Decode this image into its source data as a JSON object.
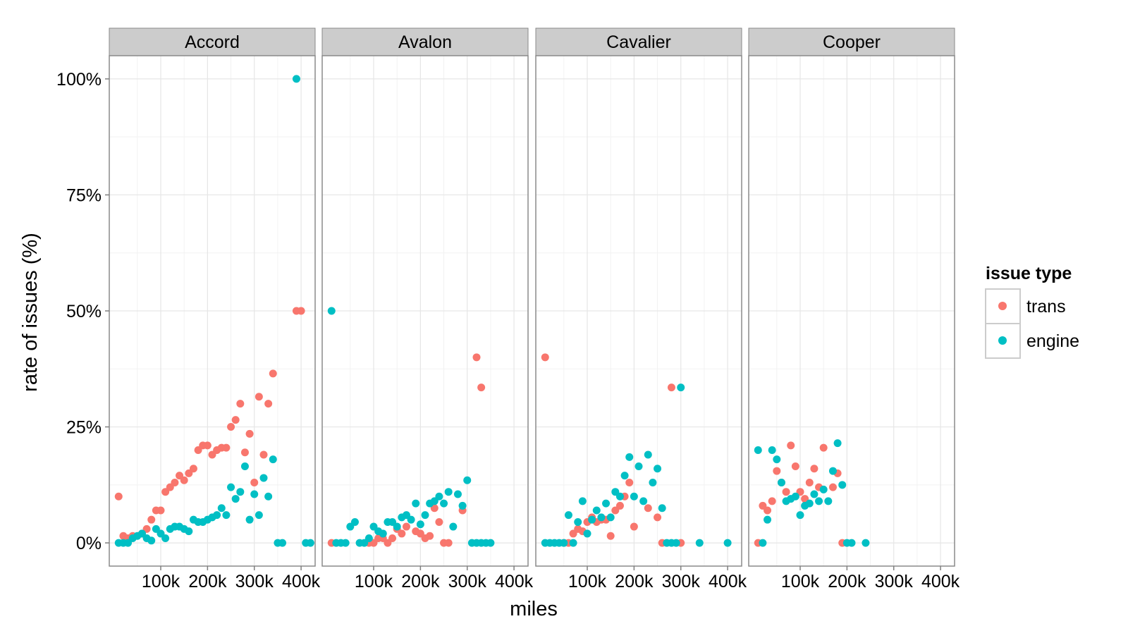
{
  "chart_data": {
    "type": "scatter",
    "xlabel": "miles",
    "ylabel": "rate of issues (%)",
    "x_ticks": [
      "100k",
      "200k",
      "300k",
      "400k"
    ],
    "x_tick_values": [
      100000,
      200000,
      300000,
      400000
    ],
    "y_ticks": [
      "0%",
      "25%",
      "50%",
      "75%",
      "100%"
    ],
    "y_tick_values": [
      0,
      25,
      50,
      75,
      100
    ],
    "xlim": [
      -10000,
      430000
    ],
    "ylim": [
      -5,
      105
    ],
    "grid": true,
    "legend": {
      "title": "issue type",
      "placement": "right",
      "entries": [
        {
          "label": "trans",
          "color": "#F8766D"
        },
        {
          "label": "engine",
          "color": "#00BFC4"
        }
      ]
    },
    "facets": [
      {
        "title": "Accord",
        "series": [
          {
            "name": "trans",
            "color": "#F8766D",
            "points": [
              [
                10000,
                10
              ],
              [
                20000,
                1.5
              ],
              [
                30000,
                1
              ],
              [
                40000,
                1.5
              ],
              [
                60000,
                2
              ],
              [
                70000,
                3
              ],
              [
                80000,
                5
              ],
              [
                90000,
                7
              ],
              [
                100000,
                7
              ],
              [
                110000,
                11
              ],
              [
                120000,
                12
              ],
              [
                130000,
                13
              ],
              [
                140000,
                14.5
              ],
              [
                150000,
                13.5
              ],
              [
                160000,
                15
              ],
              [
                170000,
                16
              ],
              [
                180000,
                20
              ],
              [
                190000,
                21
              ],
              [
                200000,
                21
              ],
              [
                210000,
                19
              ],
              [
                220000,
                20
              ],
              [
                230000,
                20.5
              ],
              [
                240000,
                20.5
              ],
              [
                250000,
                25
              ],
              [
                260000,
                26.5
              ],
              [
                270000,
                30
              ],
              [
                280000,
                19.5
              ],
              [
                290000,
                23.5
              ],
              [
                300000,
                13
              ],
              [
                310000,
                31.5
              ],
              [
                320000,
                19
              ],
              [
                330000,
                30
              ],
              [
                340000,
                36.5
              ],
              [
                390000,
                50
              ],
              [
                400000,
                50
              ]
            ]
          },
          {
            "name": "engine",
            "color": "#00BFC4",
            "points": [
              [
                10000,
                0
              ],
              [
                20000,
                0
              ],
              [
                30000,
                0
              ],
              [
                40000,
                1
              ],
              [
                50000,
                1.5
              ],
              [
                60000,
                2
              ],
              [
                70000,
                1
              ],
              [
                80000,
                0.5
              ],
              [
                90000,
                3
              ],
              [
                100000,
                2
              ],
              [
                110000,
                1
              ],
              [
                120000,
                3
              ],
              [
                130000,
                3.5
              ],
              [
                140000,
                3.5
              ],
              [
                150000,
                3
              ],
              [
                160000,
                2.5
              ],
              [
                170000,
                5
              ],
              [
                180000,
                4.5
              ],
              [
                190000,
                4.5
              ],
              [
                200000,
                5
              ],
              [
                210000,
                5.5
              ],
              [
                220000,
                6
              ],
              [
                230000,
                7.5
              ],
              [
                240000,
                6
              ],
              [
                250000,
                12
              ],
              [
                260000,
                9.5
              ],
              [
                270000,
                11
              ],
              [
                280000,
                16.5
              ],
              [
                290000,
                5
              ],
              [
                300000,
                10.5
              ],
              [
                310000,
                6
              ],
              [
                320000,
                14
              ],
              [
                330000,
                10
              ],
              [
                340000,
                18
              ],
              [
                350000,
                0
              ],
              [
                360000,
                0
              ],
              [
                390000,
                100
              ],
              [
                410000,
                0
              ],
              [
                420000,
                0
              ]
            ]
          }
        ]
      },
      {
        "title": "Avalon",
        "series": [
          {
            "name": "trans",
            "color": "#F8766D",
            "points": [
              [
                10000,
                0
              ],
              [
                90000,
                0
              ],
              [
                100000,
                0
              ],
              [
                110000,
                1
              ],
              [
                120000,
                1
              ],
              [
                130000,
                0
              ],
              [
                140000,
                1
              ],
              [
                150000,
                3
              ],
              [
                160000,
                2
              ],
              [
                170000,
                3.5
              ],
              [
                190000,
                2.5
              ],
              [
                200000,
                2
              ],
              [
                210000,
                1
              ],
              [
                220000,
                1.5
              ],
              [
                230000,
                7.5
              ],
              [
                240000,
                4.5
              ],
              [
                250000,
                0
              ],
              [
                260000,
                0
              ],
              [
                290000,
                7
              ],
              [
                320000,
                40
              ],
              [
                330000,
                33.5
              ]
            ]
          },
          {
            "name": "engine",
            "color": "#00BFC4",
            "points": [
              [
                10000,
                50
              ],
              [
                20000,
                0
              ],
              [
                30000,
                0
              ],
              [
                40000,
                0
              ],
              [
                50000,
                3.5
              ],
              [
                60000,
                4.5
              ],
              [
                70000,
                0
              ],
              [
                80000,
                0
              ],
              [
                90000,
                1
              ],
              [
                100000,
                3.5
              ],
              [
                110000,
                2.5
              ],
              [
                120000,
                2
              ],
              [
                130000,
                4.5
              ],
              [
                140000,
                4.5
              ],
              [
                150000,
                3.5
              ],
              [
                160000,
                5.5
              ],
              [
                170000,
                6
              ],
              [
                180000,
                5
              ],
              [
                190000,
                8.5
              ],
              [
                200000,
                4
              ],
              [
                210000,
                6
              ],
              [
                220000,
                8.5
              ],
              [
                230000,
                9
              ],
              [
                240000,
                10
              ],
              [
                250000,
                8.5
              ],
              [
                260000,
                11
              ],
              [
                270000,
                3.5
              ],
              [
                280000,
                10.5
              ],
              [
                290000,
                8
              ],
              [
                300000,
                13.5
              ],
              [
                310000,
                0
              ],
              [
                320000,
                0
              ],
              [
                330000,
                0
              ],
              [
                340000,
                0
              ],
              [
                350000,
                0
              ]
            ]
          }
        ]
      },
      {
        "title": "Cavalier",
        "series": [
          {
            "name": "trans",
            "color": "#F8766D",
            "points": [
              [
                10000,
                40
              ],
              [
                50000,
                0
              ],
              [
                60000,
                0
              ],
              [
                70000,
                2
              ],
              [
                80000,
                3
              ],
              [
                90000,
                2.5
              ],
              [
                100000,
                4.5
              ],
              [
                110000,
                5.5
              ],
              [
                120000,
                4.5
              ],
              [
                130000,
                5
              ],
              [
                140000,
                5
              ],
              [
                150000,
                1.5
              ],
              [
                160000,
                7
              ],
              [
                170000,
                8
              ],
              [
                180000,
                10
              ],
              [
                190000,
                13
              ],
              [
                200000,
                3.5
              ],
              [
                230000,
                7.5
              ],
              [
                250000,
                5.5
              ],
              [
                260000,
                0
              ],
              [
                280000,
                33.5
              ],
              [
                300000,
                0
              ]
            ]
          },
          {
            "name": "engine",
            "color": "#00BFC4",
            "points": [
              [
                10000,
                0
              ],
              [
                20000,
                0
              ],
              [
                30000,
                0
              ],
              [
                40000,
                0
              ],
              [
                50000,
                0
              ],
              [
                60000,
                6
              ],
              [
                70000,
                0
              ],
              [
                80000,
                4.5
              ],
              [
                90000,
                9
              ],
              [
                100000,
                2
              ],
              [
                110000,
                5
              ],
              [
                120000,
                7
              ],
              [
                130000,
                5.5
              ],
              [
                140000,
                8.5
              ],
              [
                150000,
                5.5
              ],
              [
                160000,
                11
              ],
              [
                170000,
                10
              ],
              [
                180000,
                14.5
              ],
              [
                190000,
                18.5
              ],
              [
                200000,
                10
              ],
              [
                210000,
                16.5
              ],
              [
                220000,
                9
              ],
              [
                230000,
                19
              ],
              [
                240000,
                13
              ],
              [
                250000,
                16
              ],
              [
                260000,
                7.5
              ],
              [
                270000,
                0
              ],
              [
                280000,
                0
              ],
              [
                290000,
                0
              ],
              [
                300000,
                33.5
              ],
              [
                340000,
                0
              ],
              [
                400000,
                0
              ]
            ]
          }
        ]
      },
      {
        "title": "Cooper",
        "series": [
          {
            "name": "trans",
            "color": "#F8766D",
            "points": [
              [
                10000,
                0
              ],
              [
                20000,
                8
              ],
              [
                30000,
                7
              ],
              [
                40000,
                9
              ],
              [
                50000,
                15.5
              ],
              [
                60000,
                13
              ],
              [
                70000,
                11
              ],
              [
                80000,
                21
              ],
              [
                90000,
                16.5
              ],
              [
                100000,
                11
              ],
              [
                110000,
                9.5
              ],
              [
                120000,
                13
              ],
              [
                130000,
                16
              ],
              [
                140000,
                12
              ],
              [
                150000,
                20.5
              ],
              [
                170000,
                12
              ],
              [
                180000,
                15
              ],
              [
                190000,
                0
              ]
            ]
          },
          {
            "name": "engine",
            "color": "#00BFC4",
            "points": [
              [
                10000,
                20
              ],
              [
                20000,
                0
              ],
              [
                30000,
                5
              ],
              [
                40000,
                20
              ],
              [
                50000,
                18
              ],
              [
                60000,
                13
              ],
              [
                70000,
                9
              ],
              [
                80000,
                9.5
              ],
              [
                90000,
                10
              ],
              [
                100000,
                6
              ],
              [
                110000,
                8
              ],
              [
                120000,
                8.5
              ],
              [
                130000,
                10.5
              ],
              [
                140000,
                9
              ],
              [
                150000,
                11.5
              ],
              [
                160000,
                9
              ],
              [
                170000,
                15.5
              ],
              [
                180000,
                21.5
              ],
              [
                190000,
                12.5
              ],
              [
                200000,
                0
              ],
              [
                210000,
                0
              ],
              [
                240000,
                0
              ]
            ]
          }
        ]
      }
    ]
  }
}
